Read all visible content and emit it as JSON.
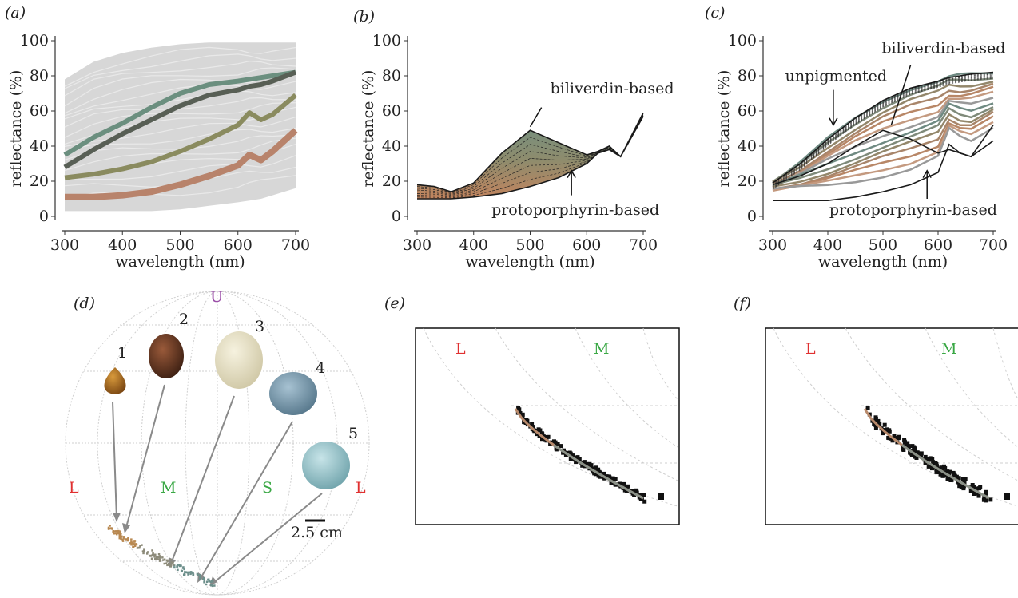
{
  "panels": {
    "a": "(a)",
    "b": "(b)",
    "c": "(c)",
    "d": "(d)",
    "e": "(e)",
    "f": "(f)"
  },
  "colors": {
    "grey_bg": "#d7d7d7",
    "grey_line": "#c4c4c4",
    "green": "#6b8f7f",
    "olive": "#8a8b5f",
    "brown": "#b8836b",
    "L": "#e03030",
    "M": "#3aa845",
    "S": "#3aa845",
    "U": "#9b4fa8"
  },
  "chart_data": [
    {
      "id": "a",
      "type": "line",
      "xlabel": "wavelength (nm)",
      "ylabel": "reflectance (%)",
      "xlim": [
        300,
        700
      ],
      "ylim": [
        0,
        100
      ],
      "xticks": [
        300,
        400,
        500,
        600,
        700
      ],
      "yticks": [
        0,
        20,
        40,
        60,
        80,
        100
      ],
      "x": [
        300,
        350,
        400,
        450,
        500,
        550,
        600,
        620,
        640,
        660,
        700
      ],
      "series": [
        {
          "values": [
            35,
            45,
            53,
            62,
            70,
            75,
            77,
            78,
            79,
            80,
            82
          ],
          "color": "#6b8f7f"
        },
        {
          "values": [
            28,
            38,
            47,
            55,
            63,
            69,
            72,
            74,
            75,
            77,
            82
          ],
          "color": "#585f55"
        },
        {
          "values": [
            22,
            24,
            27,
            31,
            37,
            44,
            52,
            59,
            55,
            58,
            69
          ],
          "color": "#8a8b5f"
        },
        {
          "values": [
            11,
            11,
            12,
            14,
            18,
            23,
            29,
            35,
            32,
            37,
            49
          ],
          "color": "#b8836b"
        }
      ]
    },
    {
      "id": "b",
      "type": "line",
      "xlabel": "wavelength (nm)",
      "ylabel": "reflectance (%)",
      "xlim": [
        300,
        700
      ],
      "ylim": [
        0,
        100
      ],
      "xticks": [
        300,
        400,
        500,
        600,
        700
      ],
      "yticks": [
        0,
        20,
        40,
        60,
        80,
        100
      ],
      "x": [
        300,
        330,
        360,
        400,
        450,
        500,
        550,
        600,
        620,
        640,
        660,
        700
      ],
      "series": [
        {
          "values": [
            18,
            17,
            14,
            19,
            36,
            49,
            42,
            35,
            37,
            40,
            34,
            59
          ],
          "color": "#1a1a1a"
        },
        {
          "values": [
            10,
            10,
            10,
            11,
            13,
            17,
            22,
            30,
            36,
            38,
            34,
            57
          ],
          "color": "#1a1a1a"
        }
      ],
      "annotations": [
        "biliverdin-based",
        "protoporphyrin-based"
      ]
    },
    {
      "id": "c",
      "type": "line",
      "xlabel": "wavelength (nm)",
      "ylabel": "reflectance (%)",
      "xlim": [
        300,
        700
      ],
      "ylim": [
        0,
        100
      ],
      "xticks": [
        300,
        400,
        500,
        600,
        700
      ],
      "yticks": [
        0,
        20,
        40,
        60,
        80,
        100
      ],
      "x": [
        300,
        350,
        400,
        450,
        500,
        550,
        600,
        620,
        640,
        660,
        700
      ],
      "series": [
        {
          "values": [
            19,
            30,
            44,
            56,
            66,
            73,
            77,
            79,
            80,
            81,
            82
          ],
          "color": "#1a1a1a"
        },
        {
          "values": [
            18,
            23,
            30,
            40,
            49,
            44,
            36,
            38,
            36,
            34,
            52
          ],
          "color": "#1a1a1a"
        },
        {
          "values": [
            9,
            9,
            9,
            11,
            14,
            18,
            25,
            41,
            36,
            34,
            43
          ],
          "color": "#1a1a1a"
        }
      ],
      "annotations": [
        "unpigmented",
        "biliverdin-based",
        "protoporphyrin-based"
      ]
    },
    {
      "id": "d",
      "type": "scatter",
      "vertex_labels": [
        "U",
        "L",
        "M",
        "S",
        "L"
      ],
      "egg_labels": [
        "1",
        "2",
        "3",
        "4",
        "5"
      ],
      "scale_label": "2.5 cm"
    },
    {
      "id": "e",
      "type": "scatter",
      "vertex_labels": [
        "L",
        "M"
      ]
    },
    {
      "id": "f",
      "type": "scatter",
      "vertex_labels": [
        "L",
        "M"
      ]
    }
  ]
}
